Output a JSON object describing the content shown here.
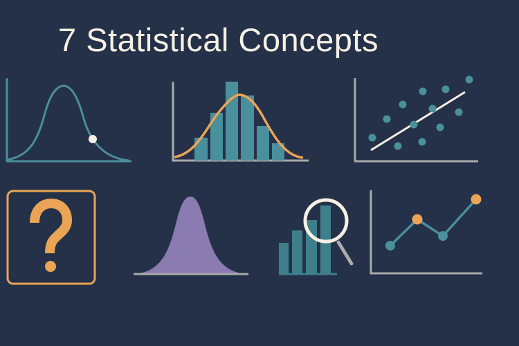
{
  "title": "7 Statistical Concepts",
  "colors": {
    "background": "#253148",
    "teal": "#4a8f9c",
    "orange": "#eba456",
    "purple": "#8a7bb0",
    "axis_gray": "#a9abac",
    "cream": "#f6f0e4"
  },
  "illustrations": [
    {
      "name": "normal-curve-with-point-icon"
    },
    {
      "name": "histogram-with-bell-curve-icon"
    },
    {
      "name": "scatter-plot-regression-icon"
    },
    {
      "name": "question-mark-box-icon"
    },
    {
      "name": "purple-bell-curve-icon"
    },
    {
      "name": "bar-chart-magnifier-icon"
    },
    {
      "name": "line-chart-markers-icon"
    }
  ]
}
